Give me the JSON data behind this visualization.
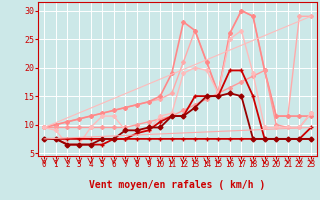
{
  "xlabel": "Vent moyen/en rafales ( km/h )",
  "xlim": [
    -0.5,
    23.5
  ],
  "ylim": [
    4.5,
    31.5
  ],
  "yticks": [
    5,
    10,
    15,
    20,
    25,
    30
  ],
  "xticks": [
    0,
    1,
    2,
    3,
    4,
    5,
    6,
    7,
    8,
    9,
    10,
    11,
    12,
    13,
    14,
    15,
    16,
    17,
    18,
    19,
    20,
    21,
    22,
    23
  ],
  "bg_color": "#cce8e8",
  "grid_color": "#ffffff",
  "line_color": "#cc0000",
  "lines": [
    {
      "x": [
        0,
        1,
        2,
        3,
        4,
        5,
        6,
        7,
        8,
        9,
        10,
        11,
        12,
        13,
        14,
        15,
        16,
        17,
        18,
        19,
        20,
        21,
        22,
        23
      ],
      "y": [
        9.5,
        10.0,
        10.5,
        11.0,
        11.5,
        12.0,
        12.5,
        13.0,
        13.5,
        14.0,
        14.5,
        15.5,
        21.0,
        26.5,
        21.0,
        15.5,
        26.0,
        30.0,
        29.0,
        19.5,
        11.5,
        11.5,
        29.0,
        29.0
      ],
      "color": "#ffaaaa",
      "lw": 1.0,
      "marker": "D",
      "ms": 2.0
    },
    {
      "x": [
        0,
        1,
        2,
        3,
        4,
        5,
        6,
        7,
        8,
        9,
        10,
        11,
        12,
        13,
        14,
        15,
        16,
        17,
        18,
        19,
        20,
        21,
        22,
        23
      ],
      "y": [
        9.5,
        10.0,
        10.5,
        11.0,
        11.5,
        12.0,
        12.5,
        13.0,
        13.5,
        14.0,
        15.0,
        19.0,
        28.0,
        26.5,
        21.0,
        15.5,
        26.0,
        30.0,
        29.0,
        19.5,
        11.5,
        11.5,
        11.5,
        11.5
      ],
      "color": "#ff8888",
      "lw": 1.2,
      "marker": "D",
      "ms": 2.0
    },
    {
      "x": [
        0,
        1,
        2,
        3,
        4,
        5,
        6,
        7,
        8,
        9,
        10,
        11,
        12,
        13,
        14,
        15,
        16,
        17,
        18,
        19,
        20,
        21,
        22,
        23
      ],
      "y": [
        9.5,
        9.5,
        9.5,
        9.5,
        9.5,
        9.5,
        9.5,
        9.5,
        10.0,
        10.5,
        11.0,
        11.5,
        12.5,
        13.5,
        14.5,
        15.5,
        16.5,
        17.5,
        18.5,
        19.5,
        10.0,
        9.5,
        9.5,
        12.0
      ],
      "color": "#ff9999",
      "lw": 1.0,
      "marker": "D",
      "ms": 2.0
    },
    {
      "x": [
        0,
        1,
        2,
        3,
        4,
        5,
        6,
        7,
        8,
        9,
        10,
        11,
        12,
        13,
        14,
        15,
        16,
        17,
        18,
        19,
        20,
        21,
        22,
        23
      ],
      "y": [
        9.5,
        9.0,
        6.5,
        6.5,
        9.5,
        11.5,
        11.5,
        9.0,
        9.0,
        9.0,
        11.5,
        12.0,
        19.0,
        20.0,
        19.5,
        15.5,
        25.0,
        26.5,
        19.0,
        9.5,
        9.5,
        9.5,
        9.5,
        12.0
      ],
      "color": "#ffbbbb",
      "lw": 1.0,
      "marker": "D",
      "ms": 2.0
    },
    {
      "x": [
        0,
        1,
        2,
        3,
        4,
        5,
        6,
        7,
        8,
        9,
        10,
        11,
        12,
        13,
        14,
        15,
        16,
        17,
        18,
        19,
        20,
        21,
        22,
        23
      ],
      "y": [
        7.5,
        7.5,
        7.5,
        7.5,
        7.5,
        7.5,
        7.5,
        7.5,
        8.5,
        9.0,
        10.5,
        11.5,
        11.5,
        15.0,
        15.0,
        15.0,
        19.5,
        19.5,
        15.0,
        7.5,
        7.5,
        7.5,
        7.5,
        9.5
      ],
      "color": "#cc0000",
      "lw": 1.3,
      "marker": "+",
      "ms": 3.5
    },
    {
      "x": [
        0,
        1,
        2,
        3,
        4,
        5,
        6,
        7,
        8,
        9,
        10,
        11,
        12,
        13,
        14,
        15,
        16,
        17,
        18,
        19,
        20,
        21,
        22,
        23
      ],
      "y": [
        7.5,
        7.5,
        6.5,
        6.5,
        6.5,
        6.5,
        7.5,
        7.5,
        7.5,
        7.5,
        7.5,
        7.5,
        7.5,
        7.5,
        7.5,
        7.5,
        7.5,
        7.5,
        7.5,
        7.5,
        7.5,
        7.5,
        7.5,
        7.5
      ],
      "color": "#cc0000",
      "lw": 1.3,
      "marker": "+",
      "ms": 3.5
    },
    {
      "x": [
        0,
        1,
        2,
        3,
        4,
        5,
        6,
        7,
        8,
        9,
        10,
        11,
        12,
        13,
        14,
        15,
        16,
        17,
        18,
        19,
        20,
        21,
        22,
        23
      ],
      "y": [
        7.5,
        7.5,
        6.5,
        6.5,
        6.5,
        7.5,
        7.5,
        9.0,
        9.0,
        9.5,
        9.5,
        11.5,
        11.5,
        13.0,
        15.0,
        15.0,
        15.5,
        15.0,
        7.5,
        7.5,
        7.5,
        7.5,
        7.5,
        7.5
      ],
      "color": "#990000",
      "lw": 1.3,
      "marker": "D",
      "ms": 2.5
    },
    {
      "x": [
        0,
        23
      ],
      "y": [
        7.5,
        9.5
      ],
      "color": "#ffaaaa",
      "lw": 0.8,
      "marker": "None",
      "ms": 0
    },
    {
      "x": [
        0,
        23
      ],
      "y": [
        9.5,
        29.0
      ],
      "color": "#ffbbbb",
      "lw": 0.8,
      "marker": "None",
      "ms": 0
    }
  ],
  "xlabel_fontsize": 7,
  "tick_fontsize": 5.5,
  "ytick_fontsize": 6
}
